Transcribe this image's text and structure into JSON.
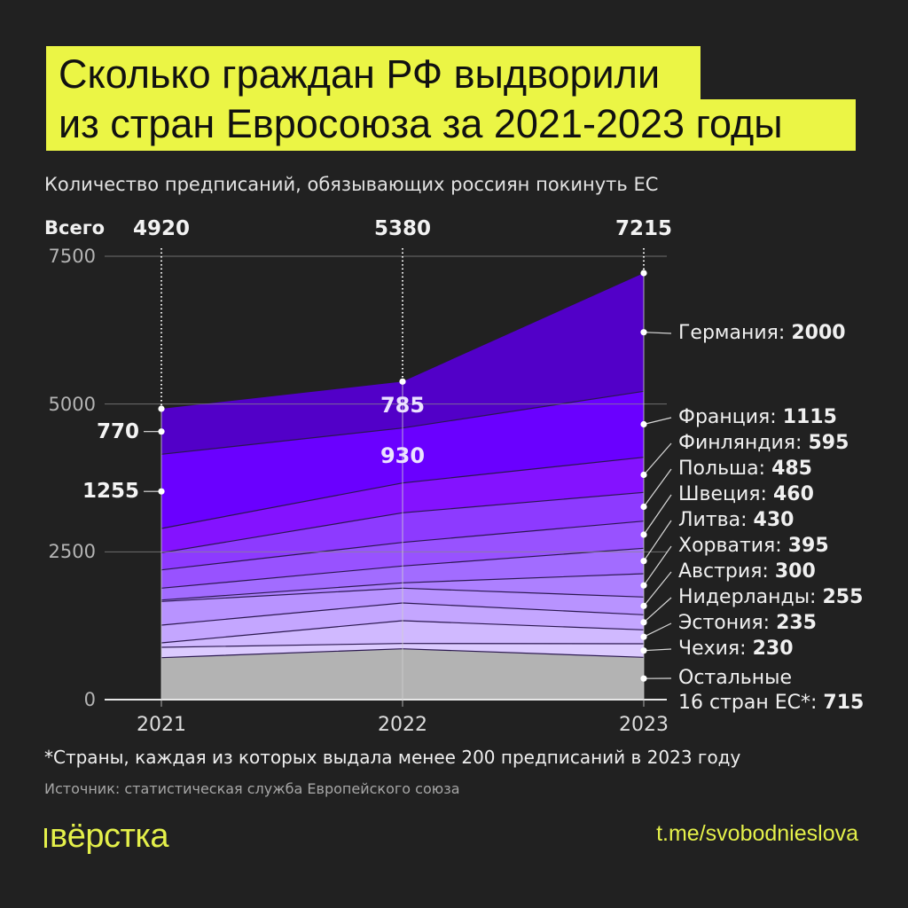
{
  "title": {
    "line1": "Сколько граждан РФ выдворили",
    "line2": "из стран Евросоюза за 2021-2023 годы"
  },
  "subtitle": "Количество предписаний, обязывающих россиян покинуть ЕС",
  "totals_label": "Всего",
  "footnote": "*Страны, каждая из которых выдала менее 200 предписаний в 2023 году",
  "source": "Источник: статистическая служба Европейского союза",
  "logo": "вёрстка",
  "link": "t.me/svobodnieslova",
  "colors": {
    "background": "#212121",
    "title_bg": "#ebf545",
    "brand_yellow": "#e4f04a"
  },
  "chart_data": {
    "type": "area",
    "stacked": true,
    "title": "Сколько граждан РФ выдворили из стран Евросоюза за 2021-2023 годы",
    "subtitle": "Количество предписаний, обязывающих россиян покинуть ЕС",
    "xlabel": "",
    "ylabel": "",
    "categories": [
      "2021",
      "2022",
      "2023"
    ],
    "totals": [
      4920,
      5380,
      7215
    ],
    "yticks": [
      0,
      2500,
      5000,
      7500
    ],
    "ylim": [
      0,
      7500
    ],
    "grid": true,
    "legend_position": "right (direct labels at 2023)",
    "series": [
      {
        "name": "Остальные 16 стран ЕС*",
        "label": "Остальные\n16 стран ЕС*:",
        "values": [
          710,
          860,
          715
        ],
        "color": "#b3b3b3"
      },
      {
        "name": "Чехия",
        "label": "Чехия:",
        "values": [
          175,
          90,
          230
        ],
        "color": "#dccbff"
      },
      {
        "name": "Эстония",
        "label": "Эстония:",
        "values": [
          75,
          385,
          235
        ],
        "color": "#d0b9ff"
      },
      {
        "name": "Нидерланды",
        "label": "Нидерланды:",
        "values": [
          300,
          300,
          255
        ],
        "color": "#c4a6ff"
      },
      {
        "name": "Австрия",
        "label": "Австрия:",
        "values": [
          400,
          250,
          300
        ],
        "color": "#b893ff"
      },
      {
        "name": "Хорватия",
        "label": "Хорватия:",
        "values": [
          25,
          90,
          395
        ],
        "color": "#ad80ff"
      },
      {
        "name": "Литва",
        "label": "Литва:",
        "values": [
          200,
          285,
          430
        ],
        "color": "#a26cff"
      },
      {
        "name": "Швеция",
        "label": "Швеция:",
        "values": [
          310,
          400,
          460
        ],
        "color": "#9852ff"
      },
      {
        "name": "Польша",
        "label": "Польша:",
        "values": [
          290,
          500,
          485
        ],
        "color": "#8d3aff"
      },
      {
        "name": "Финляндия",
        "label": "Финляндия:",
        "values": [
          410,
          505,
          595
        ],
        "color": "#8412ff"
      },
      {
        "name": "Франция",
        "label": "Франция:",
        "values": [
          1255,
          930,
          1115
        ],
        "color": "#6a00ff"
      },
      {
        "name": "Германия",
        "label": "Германия:",
        "values": [
          770,
          785,
          2000
        ],
        "color": "#5200c8"
      }
    ],
    "annotations": [
      {
        "series": "Германия",
        "year": "2021",
        "value": 770
      },
      {
        "series": "Франция",
        "year": "2021",
        "value": 1255
      },
      {
        "series": "Германия",
        "year": "2022",
        "value": 785
      },
      {
        "series": "Франция",
        "year": "2022",
        "value": 930
      }
    ]
  }
}
